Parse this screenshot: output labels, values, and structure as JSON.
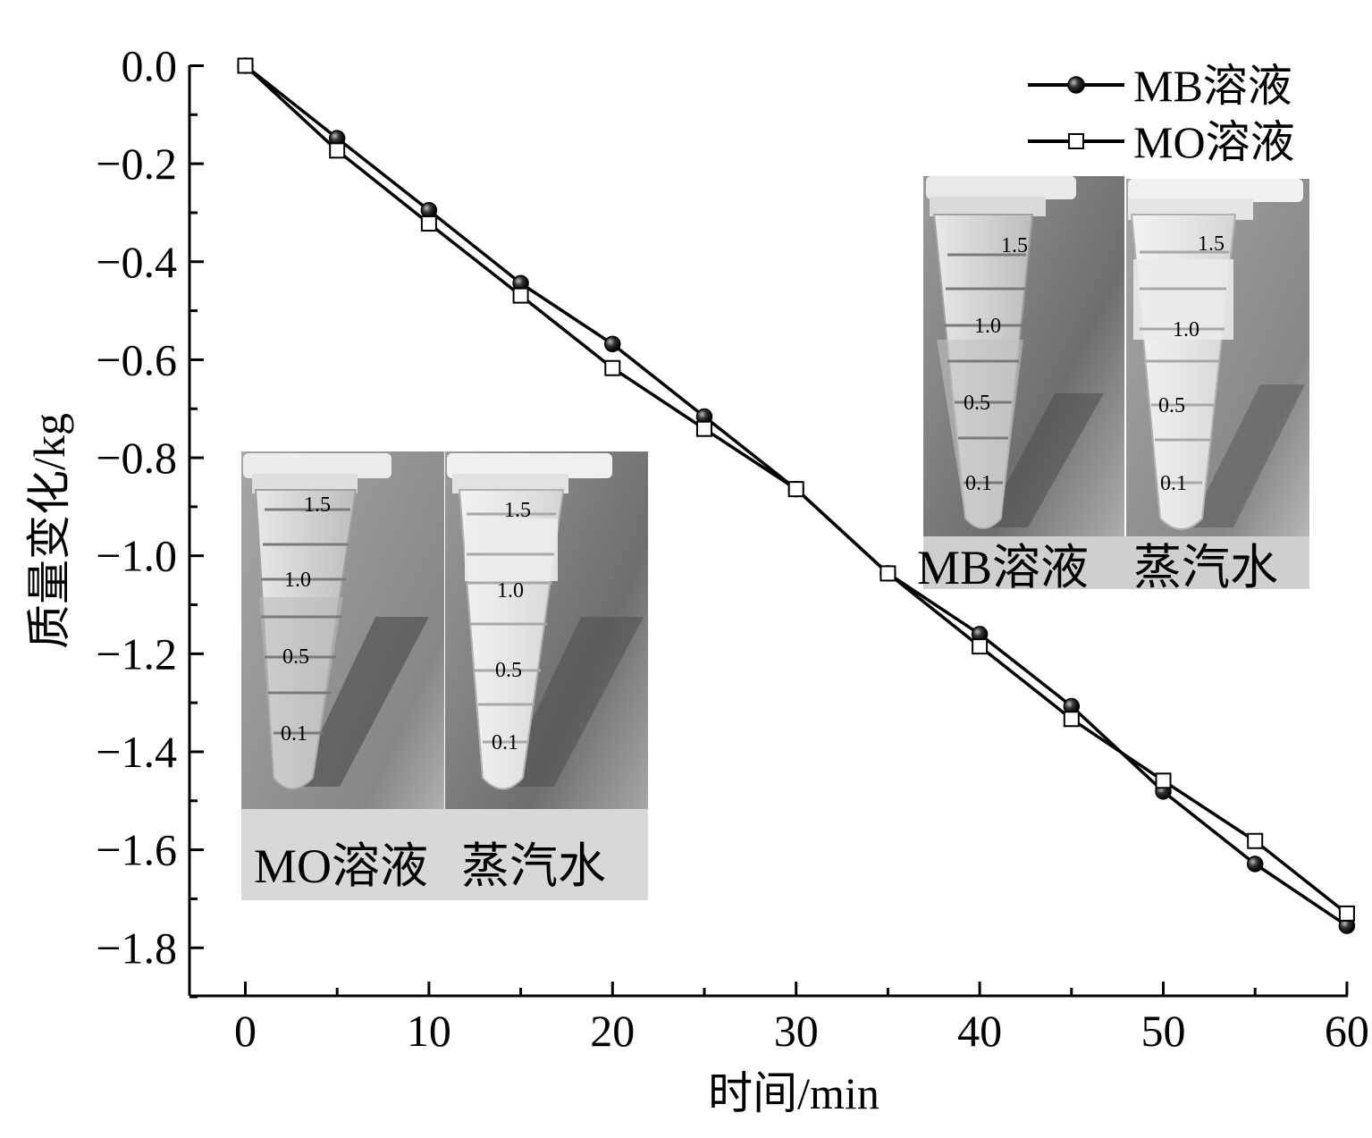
{
  "chart_data": {
    "type": "line",
    "title": "",
    "xlabel": "时间/min",
    "ylabel": "质量变化/kg",
    "xlim": [
      -3,
      60
    ],
    "ylim": [
      -1.9,
      0.0
    ],
    "xticks": [
      0,
      10,
      20,
      30,
      40,
      50,
      60
    ],
    "yticks": [
      0.0,
      -0.2,
      -0.4,
      -0.6,
      -0.8,
      -1.0,
      -1.2,
      -1.4,
      -1.6,
      -1.8
    ],
    "xtick_labels": [
      "0",
      "10",
      "20",
      "30",
      "40",
      "50",
      "60"
    ],
    "ytick_labels": [
      "0.0",
      "−0.2",
      "−0.4",
      "−0.6",
      "−0.8",
      "−1.0",
      "−1.2",
      "−1.4",
      "−1.6",
      "−1.8"
    ],
    "legend_position": "top-right",
    "grid": false,
    "x": [
      0,
      5,
      10,
      15,
      20,
      25,
      30,
      35,
      40,
      45,
      50,
      55,
      60
    ],
    "series": [
      {
        "name": "MB溶液",
        "marker": "filled-circle",
        "color": "#000000",
        "values": [
          0.0,
          -0.148,
          -0.295,
          -0.444,
          -0.568,
          -0.716,
          -0.864,
          -1.036,
          -1.16,
          -1.307,
          -1.481,
          -1.629,
          -1.755
        ]
      },
      {
        "name": "MO溶液",
        "marker": "open-square",
        "color": "#000000",
        "values": [
          0.0,
          -0.173,
          -0.322,
          -0.469,
          -0.617,
          -0.741,
          -0.864,
          -1.036,
          -1.185,
          -1.333,
          -1.459,
          -1.582,
          -1.73
        ]
      }
    ]
  },
  "insets": {
    "top_right": {
      "left_label": "MB溶液",
      "right_label": "蒸汽水"
    },
    "bottom_left": {
      "left_label": "MO溶液",
      "right_label": "蒸汽水"
    },
    "tube_scale_marks": [
      "1.5",
      "1.0",
      "0.5",
      "0.1"
    ]
  }
}
